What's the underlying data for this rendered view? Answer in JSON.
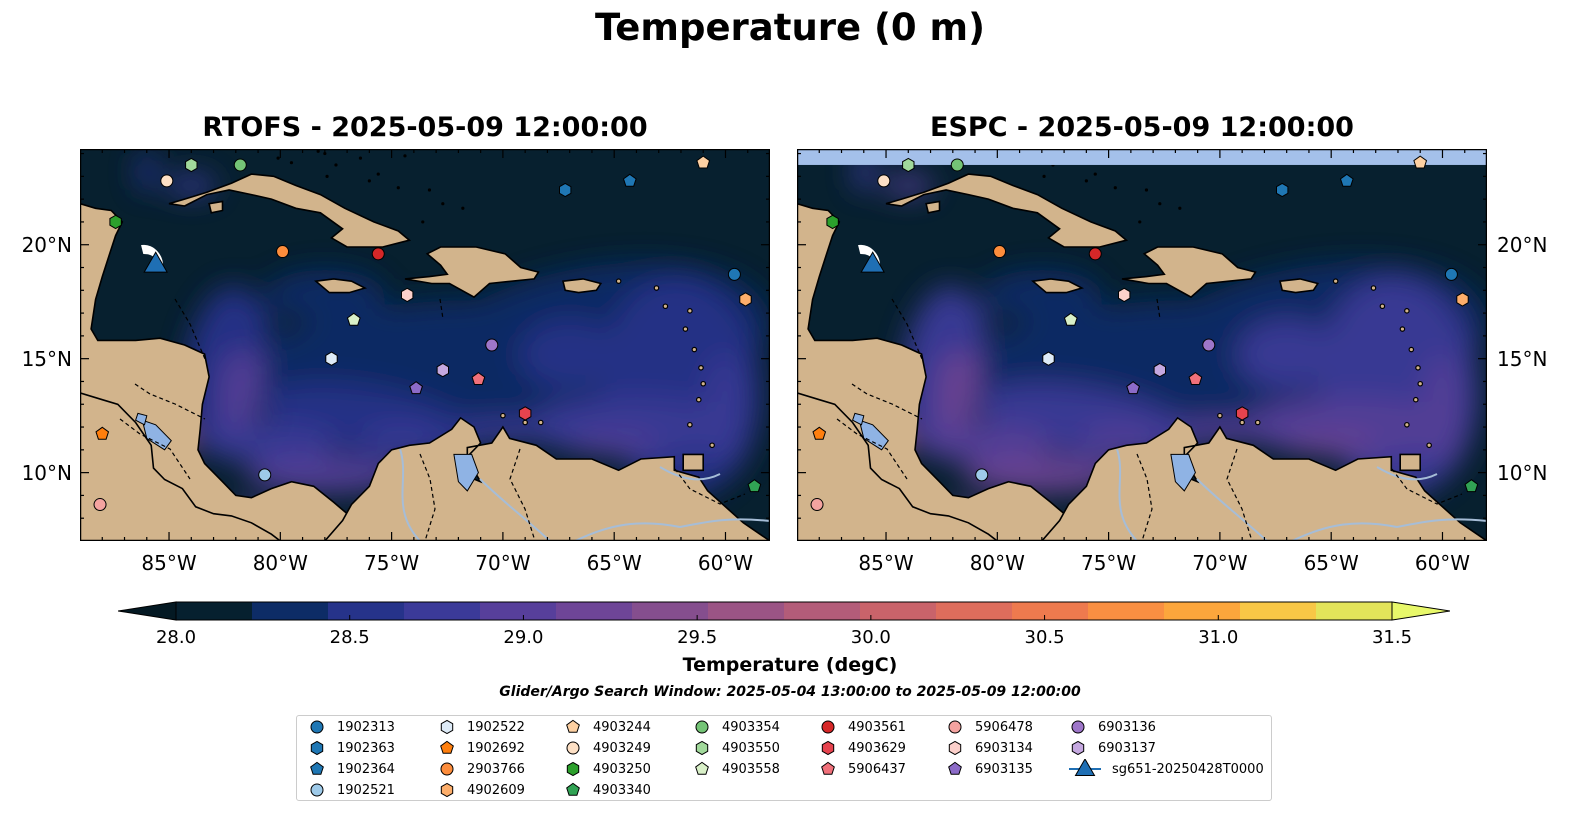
{
  "figure": {
    "suptitle": "Temperature (0 m)",
    "search_window": "Glider/Argo Search Window: 2025-05-04 13:00:00 to 2025-05-09 12:00:00"
  },
  "maps": [
    {
      "id": "rtofs",
      "title": "RTOFS - 2025-05-09 12:00:00",
      "lat_labels_side": "left",
      "has_top_band": false
    },
    {
      "id": "espc",
      "title": "ESPC - 2025-05-09 12:00:00",
      "lat_labels_side": "right",
      "has_top_band": true
    }
  ],
  "axes": {
    "lon_range": [
      -89,
      -58
    ],
    "lat_range": [
      7,
      24.2
    ],
    "lon_ticks": [
      {
        "value": -85,
        "label": "85°W"
      },
      {
        "value": -80,
        "label": "80°W"
      },
      {
        "value": -75,
        "label": "75°W"
      },
      {
        "value": -70,
        "label": "70°W"
      },
      {
        "value": -65,
        "label": "65°W"
      },
      {
        "value": -60,
        "label": "60°W"
      }
    ],
    "lat_ticks": [
      {
        "value": 20,
        "label": "20°N"
      },
      {
        "value": 15,
        "label": "15°N"
      },
      {
        "value": 10,
        "label": "10°N"
      }
    ]
  },
  "colorbar": {
    "label": "Temperature (degC)",
    "min": 28.0,
    "max": 31.5,
    "step": 0.25,
    "extend": "both",
    "ticks": [
      "28.0",
      "28.5",
      "29.0",
      "29.5",
      "30.0",
      "30.5",
      "31.0",
      "31.5"
    ],
    "colors": [
      "#06202f",
      "#0d2c66",
      "#26338a",
      "#3b3a99",
      "#573f9b",
      "#6e4597",
      "#854e8e",
      "#9b5485",
      "#b35c79",
      "#c9636a",
      "#de6d5c",
      "#ee7a4e",
      "#f98f42",
      "#fca63c",
      "#f8c746",
      "#e3e45a"
    ],
    "under_color": "#041923",
    "over_color": "#e8f86a"
  },
  "colors": {
    "land": "#d2b48c",
    "ocean_base": "#07202f",
    "lake": "#8fb3e4",
    "nodata_band": "#a4c0ea"
  },
  "legend": {
    "items": [
      {
        "id": "1902313",
        "marker": "circle",
        "color": "#1f77b4"
      },
      {
        "id": "1902363",
        "marker": "hexagon",
        "color": "#1f77b4"
      },
      {
        "id": "1902364",
        "marker": "pentagon",
        "color": "#1f77b4"
      },
      {
        "id": "1902521",
        "marker": "circle",
        "color": "#9ecae9"
      },
      {
        "id": "1902522",
        "marker": "hexagon",
        "color": "#deebf7"
      },
      {
        "id": "1902692",
        "marker": "pentagon",
        "color": "#ff7f0e"
      },
      {
        "id": "2903766",
        "marker": "circle",
        "color": "#fd8d3c"
      },
      {
        "id": "4902609",
        "marker": "hexagon",
        "color": "#fdae6b"
      },
      {
        "id": "4903244",
        "marker": "pentagon",
        "color": "#fdd0a2"
      },
      {
        "id": "4903249",
        "marker": "circle",
        "color": "#fde0c5"
      },
      {
        "id": "4903250",
        "marker": "hexagon",
        "color": "#2ca02c"
      },
      {
        "id": "4903340",
        "marker": "pentagon",
        "color": "#31a354"
      },
      {
        "id": "4903354",
        "marker": "circle",
        "color": "#74c476"
      },
      {
        "id": "4903550",
        "marker": "hexagon",
        "color": "#a1d99b"
      },
      {
        "id": "4903558",
        "marker": "pentagon",
        "color": "#d9f0c8"
      },
      {
        "id": "4903561",
        "marker": "circle",
        "color": "#d62728"
      },
      {
        "id": "4903629",
        "marker": "hexagon",
        "color": "#e6434e"
      },
      {
        "id": "5906437",
        "marker": "pentagon",
        "color": "#f0707a"
      },
      {
        "id": "5906478",
        "marker": "circle",
        "color": "#f4a3a0"
      },
      {
        "id": "6903134",
        "marker": "hexagon",
        "color": "#fcd0cb"
      },
      {
        "id": "6903135",
        "marker": "pentagon",
        "color": "#8c6bc8"
      },
      {
        "id": "6903136",
        "marker": "circle",
        "color": "#9e76c9"
      },
      {
        "id": "6903137",
        "marker": "hexagon",
        "color": "#c5a8e0"
      },
      {
        "id": "sg651-20250428T0000",
        "marker": "triangle",
        "color": "#1f6fb4"
      }
    ]
  },
  "floats": [
    {
      "id": "1902313",
      "lon": -59.6,
      "lat": 18.7
    },
    {
      "id": "1902363",
      "lon": -67.2,
      "lat": 22.4
    },
    {
      "id": "1902364",
      "lon": -64.3,
      "lat": 22.8
    },
    {
      "id": "1902521",
      "lon": -80.7,
      "lat": 9.9
    },
    {
      "id": "1902522",
      "lon": -77.7,
      "lat": 15.0
    },
    {
      "id": "1902692",
      "lon": -88.0,
      "lat": 11.7
    },
    {
      "id": "2903766",
      "lon": -79.9,
      "lat": 19.7
    },
    {
      "id": "4902609",
      "lon": -59.1,
      "lat": 17.6
    },
    {
      "id": "4903244",
      "lon": -61.0,
      "lat": 23.6
    },
    {
      "id": "4903249",
      "lon": -85.1,
      "lat": 22.8
    },
    {
      "id": "4903250",
      "lon": -87.4,
      "lat": 21.0
    },
    {
      "id": "4903340",
      "lon": -58.7,
      "lat": 9.4
    },
    {
      "id": "4903354",
      "lon": -81.8,
      "lat": 23.5
    },
    {
      "id": "4903550",
      "lon": -84.0,
      "lat": 23.5
    },
    {
      "id": "4903558",
      "lon": -76.7,
      "lat": 16.7
    },
    {
      "id": "4903561",
      "lon": -75.6,
      "lat": 19.6
    },
    {
      "id": "4903629",
      "lon": -69.0,
      "lat": 12.6
    },
    {
      "id": "5906437",
      "lon": -71.1,
      "lat": 14.1
    },
    {
      "id": "5906478",
      "lon": -88.1,
      "lat": 8.6
    },
    {
      "id": "6903134",
      "lon": -74.3,
      "lat": 17.8
    },
    {
      "id": "6903135",
      "lon": -73.9,
      "lat": 13.7
    },
    {
      "id": "6903136",
      "lon": -70.5,
      "lat": 15.6
    },
    {
      "id": "6903137",
      "lon": -72.7,
      "lat": 14.5
    }
  ],
  "glider": {
    "id": "sg651-20250428T0000",
    "lon": -85.6,
    "lat": 19.0
  }
}
